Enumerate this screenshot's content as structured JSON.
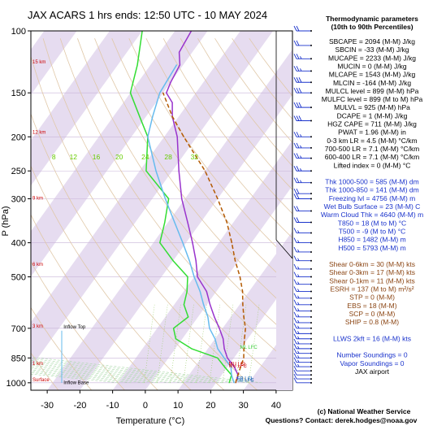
{
  "title": "JAX ACARS 1 hrs ends: 12:50 UTC - 10 MAY 2024",
  "params_header": [
    "Thermodynamic parameters",
    "(10th to 90th Percentiles)"
  ],
  "params": [
    {
      "text": "SBCAPE = 2094 (M-M) J/kg",
      "color": "#000000"
    },
    {
      "text": "SBCIN = -33 (M-M) J/kg",
      "color": "#000000"
    },
    {
      "text": "MUCAPE = 2233 (M-M) J/kg",
      "color": "#000000"
    },
    {
      "text": "MUCIN = 0 (M-M) J/kg",
      "color": "#000000"
    },
    {
      "text": "MLCAPE = 1543 (M-M) J/kg",
      "color": "#000000"
    },
    {
      "text": "MLCIN = -164 (M-M) J/kg",
      "color": "#000000"
    },
    {
      "text": "MULCL level = 899 (M-M) hPa",
      "color": "#000000"
    },
    {
      "text": "MULFC level = 899 (M to M) hPa",
      "color": "#000000"
    },
    {
      "text": "MULVL = 925 (M-M) hPa",
      "color": "#000000"
    },
    {
      "text": "DCAPE = 1 (M-M) J/kg",
      "color": "#000000"
    },
    {
      "text": "HGZ CAPE = 711 (M-M) J/kg",
      "color": "#000000"
    },
    {
      "text": "PWAT = 1.96 (M-M) in",
      "color": "#000000"
    },
    {
      "text": "0-3 km LR = 4.5 (M-M) °C/km",
      "color": "#000000"
    },
    {
      "text": "700-500 LR = 7.1 (M-M) °C/km",
      "color": "#000000"
    },
    {
      "text": "600-400 LR = 7.1 (M-M) °C/km",
      "color": "#000000"
    },
    {
      "text": "Lifted index = 0 (M-M) °C",
      "color": "#000000"
    },
    {
      "text": "",
      "color": "#000000"
    },
    {
      "text": "Thk 1000-500 = 585 (M-M) dm",
      "color": "#1a33cc"
    },
    {
      "text": "Thk 1000-850 = 141 (M-M) dm",
      "color": "#1a33cc"
    },
    {
      "text": "Freezing lvl = 4756 (M-M) m",
      "color": "#1a33cc"
    },
    {
      "text": "Wet Bulb Surface = 23 (M-M) C",
      "color": "#1a33cc"
    },
    {
      "text": "Warm Cloud Thk = 4640 (M-M) m",
      "color": "#1a33cc"
    },
    {
      "text": "T850 = 18 (M to M) °C",
      "color": "#1a33cc"
    },
    {
      "text": "T500 = -9 (M to M) °C",
      "color": "#1a33cc"
    },
    {
      "text": "H850 = 1482 (M-M) m",
      "color": "#1a33cc"
    },
    {
      "text": "H500 = 5793 (M-M) m",
      "color": "#1a33cc"
    },
    {
      "text": "",
      "color": "#000000"
    },
    {
      "text": "Shear 0-6km = 30 (M-M) kts",
      "color": "#8b4513"
    },
    {
      "text": "Shear 0-3km = 17 (M-M) kts",
      "color": "#8b4513"
    },
    {
      "text": "Shear 0-1km = 11 (M-M) kts",
      "color": "#8b4513"
    },
    {
      "text": "ESRH = 137 (M to M) m²/s²",
      "color": "#8b4513"
    },
    {
      "text": "STP = 0 (M-M)",
      "color": "#8b4513"
    },
    {
      "text": "EBS = 18 (M-M)",
      "color": "#8b4513"
    },
    {
      "text": "SCP = 0 (M-M)",
      "color": "#8b4513"
    },
    {
      "text": "SHIP = 0.8 (M-M)",
      "color": "#8b4513"
    },
    {
      "text": "",
      "color": "#000000"
    },
    {
      "text": "LLWS 2kft = 16 (M-M) kts",
      "color": "#1a33cc"
    },
    {
      "text": "",
      "color": "#000000"
    },
    {
      "text": "Number Soundings = 0",
      "color": "#1a33cc"
    },
    {
      "text": "Vapor Soundings = 0",
      "color": "#1a33cc"
    },
    {
      "text": "JAX airport",
      "color": "#000000"
    }
  ],
  "footer": {
    "line1": "(c) National Weather Service",
    "line2": "Questions? Contact: derek.hodges@noaa.gov"
  },
  "chart_data": {
    "type": "line",
    "title": "JAX ACARS 1 hrs ends: 12:50 UTC - 10 MAY 2024",
    "xlabel": "Temperature (°C)",
    "ylabel": "P (hPa)",
    "xlim": [
      -35,
      45
    ],
    "xticks": [
      -30,
      -20,
      -10,
      0,
      10,
      20,
      30,
      40
    ],
    "ylim": [
      1050,
      100
    ],
    "yscale": "log",
    "yticks": [
      100,
      150,
      200,
      250,
      300,
      400,
      500,
      700,
      850,
      1000
    ],
    "height_labels": [
      {
        "text": "Surface",
        "p": 1000
      },
      {
        "text": "1 km",
        "p": 900
      },
      {
        "text": "3 km",
        "p": 705
      },
      {
        "text": "6 km",
        "p": 470
      },
      {
        "text": "9 km",
        "p": 305
      },
      {
        "text": "12 km",
        "p": 198
      },
      {
        "text": "15 km",
        "p": 125
      }
    ],
    "mixing_ratio_labels": [
      {
        "text": "8",
        "x": -28
      },
      {
        "text": "12",
        "x": -22
      },
      {
        "text": "16",
        "x": -15
      },
      {
        "text": "20",
        "x": -8
      },
      {
        "text": "24",
        "x": 0
      },
      {
        "text": "28",
        "x": 7
      },
      {
        "text": "32",
        "x": 15
      }
    ],
    "mixing_ratio_label_p": 228,
    "annotations": [
      {
        "text": "Inflow Top",
        "p": 700,
        "x": -25,
        "color": "#000000"
      },
      {
        "text": "Inflow Base",
        "p": 1010,
        "x": -25,
        "color": "#000000"
      },
      {
        "text": "ML LFC",
        "p": 800,
        "x": 29,
        "color": "#33cc33"
      },
      {
        "text": "MU LCL",
        "p": 892,
        "x": 25.5,
        "color": "#cc0000"
      },
      {
        "text": "MU LFC",
        "p": 905,
        "x": 25.5,
        "color": "#cc0000"
      },
      {
        "text": "SB LCL",
        "p": 982,
        "x": 28,
        "color": "#0055aa"
      },
      {
        "text": "SB LFC",
        "p": 992,
        "x": 28,
        "color": "#0055aa"
      }
    ],
    "series": [
      {
        "name": "",
        "color": "#9933cc",
        "points": [
          [
            26,
            1000
          ],
          [
            25,
            950
          ],
          [
            22,
            900
          ],
          [
            18,
            850
          ],
          [
            15,
            800
          ],
          [
            12.5,
            750
          ],
          [
            9,
            700
          ],
          [
            5,
            650
          ],
          [
            1,
            600
          ],
          [
            -3,
            550
          ],
          [
            -9,
            500
          ],
          [
            -13,
            450
          ],
          [
            -18,
            400
          ],
          [
            -24,
            350
          ],
          [
            -31,
            300
          ],
          [
            -38,
            250
          ],
          [
            -46,
            200
          ],
          [
            -52,
            175
          ],
          [
            -55,
            160
          ],
          [
            -59,
            150
          ],
          [
            -60,
            140
          ],
          [
            -61,
            125
          ],
          [
            -64,
            115
          ],
          [
            -65,
            100
          ]
        ]
      },
      {
        "name": "",
        "color": "#33dd33",
        "points": [
          [
            24,
            1000
          ],
          [
            23,
            950
          ],
          [
            19,
            900
          ],
          [
            15,
            850
          ],
          [
            5,
            800
          ],
          [
            -2,
            750
          ],
          [
            -5,
            700
          ],
          [
            -3,
            650
          ],
          [
            -7,
            600
          ],
          [
            -9,
            550
          ],
          [
            -12,
            500
          ],
          [
            -20,
            450
          ],
          [
            -28,
            400
          ],
          [
            -31,
            350
          ],
          [
            -35,
            300
          ],
          [
            -48,
            250
          ],
          [
            -55,
            200
          ],
          [
            -62,
            175
          ],
          [
            -70,
            150
          ],
          [
            -74,
            125
          ],
          [
            -80,
            100
          ]
        ]
      },
      {
        "name": "",
        "color": "#b35900",
        "dashed": true,
        "points": [
          [
            26,
            1000
          ],
          [
            25,
            950
          ],
          [
            24,
            900
          ],
          [
            23,
            850
          ],
          [
            21,
            800
          ],
          [
            19,
            750
          ],
          [
            17,
            700
          ],
          [
            14,
            650
          ],
          [
            11,
            600
          ],
          [
            8,
            550
          ],
          [
            4,
            500
          ],
          [
            -1,
            450
          ],
          [
            -6,
            400
          ],
          [
            -12,
            350
          ],
          [
            -20,
            300
          ],
          [
            -30,
            250
          ],
          [
            -44,
            200
          ],
          [
            -52,
            175
          ],
          [
            -60,
            150
          ]
        ]
      },
      {
        "name": "",
        "color": "#66bbee",
        "points": [
          [
            25.5,
            1000
          ],
          [
            23,
            950
          ],
          [
            21,
            900
          ],
          [
            17,
            850
          ],
          [
            13,
            800
          ],
          [
            10,
            750
          ],
          [
            6,
            700
          ],
          [
            3,
            650
          ],
          [
            -1,
            600
          ],
          [
            -5,
            550
          ],
          [
            -10,
            500
          ],
          [
            -15,
            450
          ],
          [
            -21,
            400
          ],
          [
            -28,
            350
          ],
          [
            -36,
            300
          ],
          [
            -45,
            250
          ],
          [
            -55,
            200
          ],
          [
            -58,
            175
          ],
          [
            -61,
            150
          ],
          [
            -62,
            125
          ]
        ]
      }
    ],
    "wind_barbs": [
      {
        "p": 100,
        "speed_kt": 20
      },
      {
        "p": 110,
        "speed_kt": 20
      },
      {
        "p": 120,
        "speed_kt": 25
      },
      {
        "p": 130,
        "speed_kt": 25
      },
      {
        "p": 140,
        "speed_kt": 30
      },
      {
        "p": 150,
        "speed_kt": 30
      },
      {
        "p": 165,
        "speed_kt": 30
      },
      {
        "p": 180,
        "speed_kt": 30
      },
      {
        "p": 200,
        "speed_kt": 25
      },
      {
        "p": 215,
        "speed_kt": 25
      },
      {
        "p": 230,
        "speed_kt": 25
      },
      {
        "p": 250,
        "speed_kt": 25
      },
      {
        "p": 270,
        "speed_kt": 25
      },
      {
        "p": 290,
        "speed_kt": 20
      },
      {
        "p": 300,
        "speed_kt": 20
      },
      {
        "p": 325,
        "speed_kt": 20
      },
      {
        "p": 350,
        "speed_kt": 20
      },
      {
        "p": 375,
        "speed_kt": 15
      },
      {
        "p": 400,
        "speed_kt": 15
      },
      {
        "p": 425,
        "speed_kt": 15
      },
      {
        "p": 450,
        "speed_kt": 15
      },
      {
        "p": 475,
        "speed_kt": 15
      },
      {
        "p": 500,
        "speed_kt": 15
      },
      {
        "p": 525,
        "speed_kt": 15
      },
      {
        "p": 550,
        "speed_kt": 15
      },
      {
        "p": 575,
        "speed_kt": 15
      },
      {
        "p": 600,
        "speed_kt": 15
      },
      {
        "p": 625,
        "speed_kt": 15
      },
      {
        "p": 650,
        "speed_kt": 15
      },
      {
        "p": 675,
        "speed_kt": 15
      },
      {
        "p": 700,
        "speed_kt": 15
      },
      {
        "p": 725,
        "speed_kt": 15
      },
      {
        "p": 750,
        "speed_kt": 15
      },
      {
        "p": 775,
        "speed_kt": 15
      },
      {
        "p": 800,
        "speed_kt": 15
      },
      {
        "p": 825,
        "speed_kt": 15
      },
      {
        "p": 850,
        "speed_kt": 15
      },
      {
        "p": 875,
        "speed_kt": 15
      },
      {
        "p": 900,
        "speed_kt": 15
      },
      {
        "p": 925,
        "speed_kt": 10
      },
      {
        "p": 950,
        "speed_kt": 10
      },
      {
        "p": 975,
        "speed_kt": 10
      },
      {
        "p": 1000,
        "speed_kt": 10
      }
    ]
  }
}
